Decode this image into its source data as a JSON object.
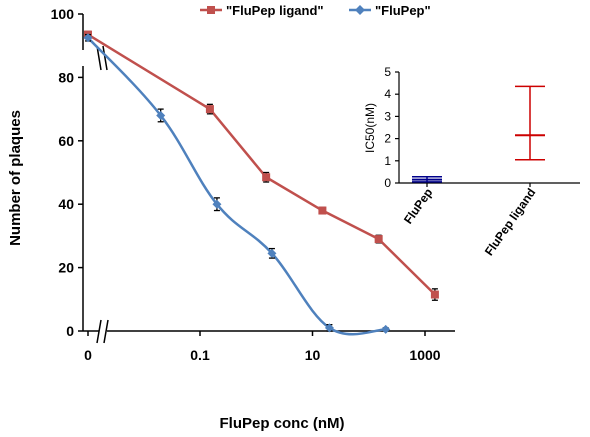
{
  "chart_data": [
    {
      "type": "line",
      "title": "",
      "xlabel": "FluPep conc (nM)",
      "ylabel": "Number of plaques",
      "x_scale": "log",
      "x_ticks": [
        "0",
        "0.1",
        "10",
        "1000"
      ],
      "y_ticks": [
        "0",
        "20",
        "40",
        "60",
        "80",
        "100"
      ],
      "ylim": [
        0,
        100
      ],
      "grid": false,
      "axis_breaks": true,
      "legend_position": "top",
      "series": [
        {
          "name": "\"FluPep ligand\"",
          "color": "#c0504d",
          "marker": "square",
          "points": [
            {
              "x": "0",
              "y": 93.5,
              "err": 1.0
            },
            {
              "x": 0.15,
              "y": 70,
              "err": 1.5
            },
            {
              "x": 1.5,
              "y": 48.5,
              "err": 1.5
            },
            {
              "x": 15,
              "y": 38,
              "err": 1.0
            },
            {
              "x": 150,
              "y": 29,
              "err": 1.2
            },
            {
              "x": 1500,
              "y": 11.5,
              "err": 1.8
            }
          ]
        },
        {
          "name": "\"FluPep\"",
          "color": "#4f81bd",
          "marker": "diamond",
          "points": [
            {
              "x": "0",
              "y": 92.5,
              "err": 1.0
            },
            {
              "x": 0.02,
              "y": 68,
              "err": 2.0
            },
            {
              "x": 0.2,
              "y": 40,
              "err": 2.0
            },
            {
              "x": 1.9,
              "y": 24.5,
              "err": 1.5
            },
            {
              "x": 20,
              "y": 1,
              "err": 1.0
            },
            {
              "x": 200,
              "y": 0.5,
              "err": 0.5
            }
          ]
        }
      ]
    },
    {
      "type": "scatter",
      "ylabel": "IC50(nM)",
      "ylim": [
        0,
        5
      ],
      "y_ticks": [
        "0",
        "1",
        "2",
        "3",
        "4",
        "5"
      ],
      "categories": [
        "FluPep",
        "FluPep ligand"
      ],
      "series": [
        {
          "category": "FluPep",
          "color": "#00008b",
          "mean": 0.15,
          "low": 0.05,
          "high": 0.28
        },
        {
          "category": "FluPep ligand",
          "color": "#cc0000",
          "mean": 2.15,
          "low": 1.05,
          "high": 4.35
        }
      ]
    }
  ]
}
